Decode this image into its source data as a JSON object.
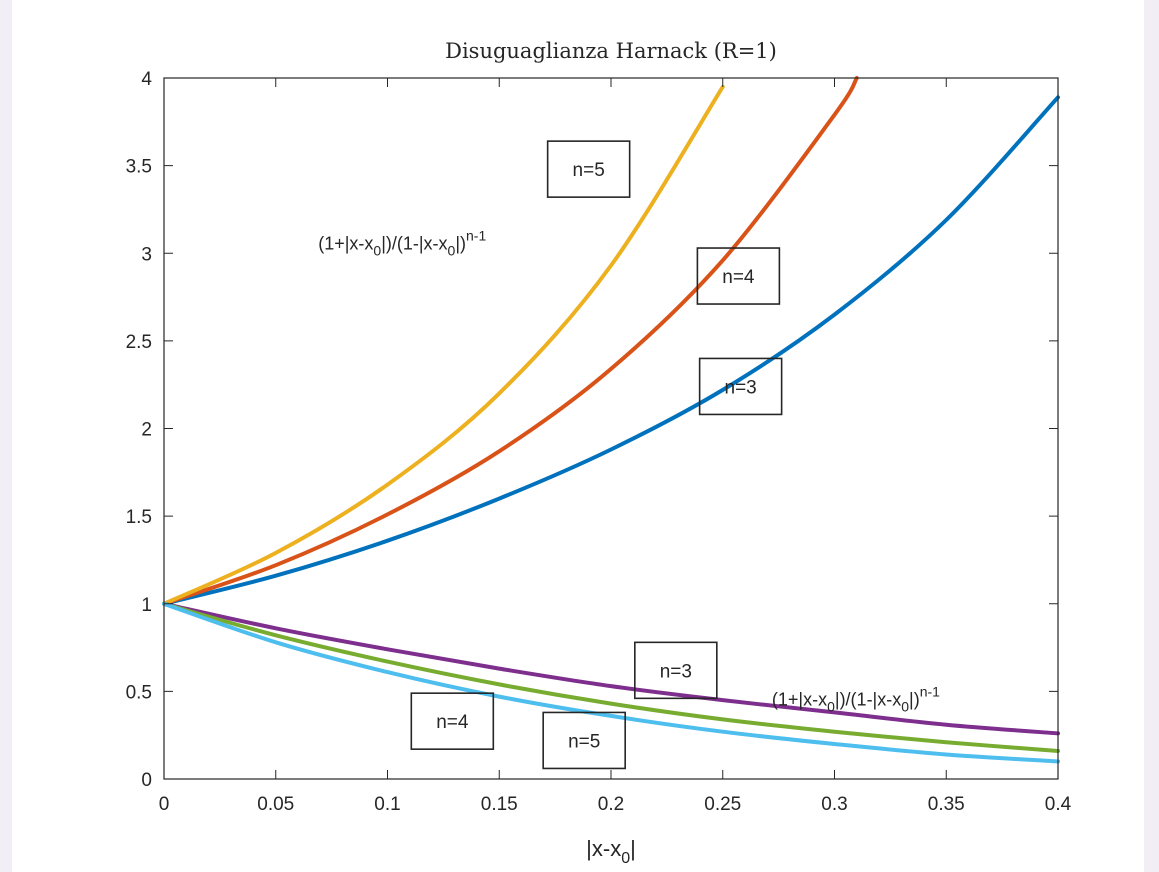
{
  "chart_data": {
    "type": "line",
    "title": "Disuguaglianza Harnack (R=1)",
    "xlabel": {
      "main": "|x-x",
      "sub": "0",
      "tail": "|"
    },
    "ylabel": "",
    "xlim": [
      0,
      0.4
    ],
    "ylim": [
      0,
      4
    ],
    "x_ticks": [
      0,
      0.05,
      0.1,
      0.15,
      0.2,
      0.25,
      0.3,
      0.35,
      0.4
    ],
    "x_tick_labels": [
      "0",
      "0.05",
      "0.1",
      "0.15",
      "0.2",
      "0.25",
      "0.3",
      "0.35",
      "0.4"
    ],
    "y_ticks": [
      0,
      0.5,
      1,
      1.5,
      2,
      2.5,
      3,
      3.5,
      4
    ],
    "y_tick_labels": [
      "0",
      "0.5",
      "1",
      "1.5",
      "2",
      "2.5",
      "3",
      "3.5",
      "4"
    ],
    "grid": false,
    "series": [
      {
        "kind": "upper",
        "n": 3,
        "color": "#0072BD",
        "x": [
          0,
          0.05,
          0.1,
          0.15,
          0.2,
          0.25,
          0.3,
          0.35,
          0.4
        ],
        "y": [
          1.0,
          1.16,
          1.36,
          1.6,
          1.88,
          2.22,
          2.65,
          3.19,
          3.89
        ]
      },
      {
        "kind": "upper",
        "n": 4,
        "color": "#D95319",
        "x": [
          0,
          0.05,
          0.1,
          0.15,
          0.2,
          0.25,
          0.3,
          0.31
        ],
        "y": [
          1.0,
          1.22,
          1.51,
          1.87,
          2.34,
          2.96,
          3.79,
          4.0
        ]
      },
      {
        "kind": "upper",
        "n": 5,
        "color": "#EDB120",
        "x": [
          0,
          0.05,
          0.1,
          0.15,
          0.2,
          0.25
        ],
        "y": [
          1.0,
          1.29,
          1.68,
          2.2,
          2.93,
          3.95
        ]
      },
      {
        "kind": "lower",
        "n": 3,
        "color": "#7E2F8E",
        "x": [
          0,
          0.05,
          0.1,
          0.15,
          0.2,
          0.25,
          0.3,
          0.35,
          0.4
        ],
        "y": [
          1.0,
          0.86,
          0.74,
          0.63,
          0.53,
          0.45,
          0.38,
          0.31,
          0.26
        ]
      },
      {
        "kind": "lower",
        "n": 4,
        "color": "#77AC30",
        "x": [
          0,
          0.05,
          0.1,
          0.15,
          0.2,
          0.25,
          0.3,
          0.35,
          0.4
        ],
        "y": [
          1.0,
          0.82,
          0.67,
          0.54,
          0.43,
          0.34,
          0.27,
          0.21,
          0.16
        ]
      },
      {
        "kind": "lower",
        "n": 5,
        "color": "#4DBEEE",
        "x": [
          0,
          0.05,
          0.1,
          0.15,
          0.2,
          0.25,
          0.3,
          0.35,
          0.4
        ],
        "y": [
          1.0,
          0.78,
          0.61,
          0.47,
          0.36,
          0.27,
          0.2,
          0.14,
          0.1
        ]
      }
    ],
    "annotations": [
      {
        "text": "n=5",
        "x": 0.19,
        "y": 3.48
      },
      {
        "text": "n=4",
        "x": 0.257,
        "y": 2.87
      },
      {
        "text": "n=3",
        "x": 0.258,
        "y": 2.24
      },
      {
        "text": "n=3",
        "x": 0.229,
        "y": 0.62
      },
      {
        "text": "n=4",
        "x": 0.129,
        "y": 0.33
      },
      {
        "text": "n=5",
        "x": 0.188,
        "y": 0.22
      }
    ],
    "formulas": [
      {
        "x": 0.069,
        "y": 3.02,
        "t1": "(1+|x-x",
        "s1": "0",
        "t2": "|)/(1-|x-x",
        "s2": "0",
        "t3": "|)",
        "sup": "n-1"
      },
      {
        "x": 0.272,
        "y": 0.42,
        "t1": "(1+|x-x",
        "s1": "0",
        "t2": "|)/(1-|x-x",
        "s2": "0",
        "t3": "|)",
        "sup": "n-1"
      }
    ]
  }
}
